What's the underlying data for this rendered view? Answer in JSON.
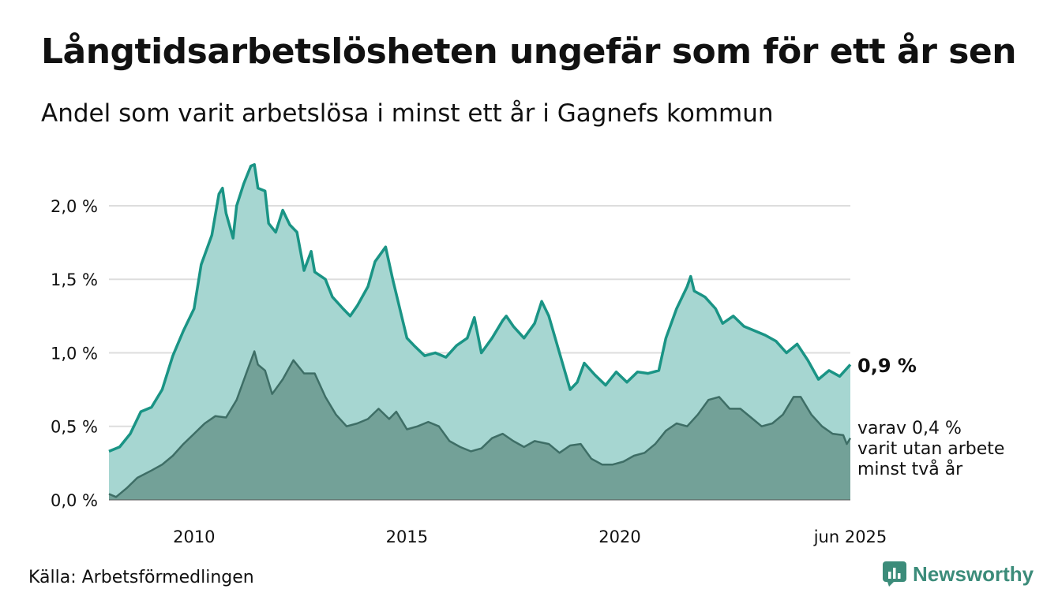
{
  "header": {
    "title": "Långtidsarbetslösheten ungefär som för ett år sen",
    "subtitle": "Andel som varit arbetslösa i minst ett år i Gagnefs kommun"
  },
  "footer": {
    "source": "Källa: Arbetsförmedlingen",
    "brand": "Newsworthy"
  },
  "labels": {
    "end_value": "0,9 %",
    "sub_line1": "varav 0,4 %",
    "sub_line2": "varit utan arbete",
    "sub_line3": "minst två år"
  },
  "colors": {
    "one_year_line": "#1a9485",
    "one_year_fill": "#a6d6d1",
    "two_year_line": "#3e6e66",
    "two_year_fill": "#73a198",
    "grid": "#dddddd",
    "brand": "#3c8c7a"
  },
  "chart_data": {
    "type": "area",
    "x_start": "2008-01",
    "x_end": "2025-06",
    "ylim": [
      0,
      2.3
    ],
    "grid": true,
    "y_ticks": [
      {
        "value": 0.0,
        "label": "0,0 %"
      },
      {
        "value": 0.5,
        "label": "0,5 %"
      },
      {
        "value": 1.0,
        "label": "1,0 %"
      },
      {
        "value": 1.5,
        "label": "1,5 %"
      },
      {
        "value": 2.0,
        "label": "2,0 %"
      }
    ],
    "x_ticks": [
      {
        "date": "2010-01",
        "label": "2010"
      },
      {
        "date": "2015-01",
        "label": "2015"
      },
      {
        "date": "2020-01",
        "label": "2020"
      },
      {
        "date": "2025-06",
        "label": "jun 2025"
      }
    ],
    "series": [
      {
        "key": "one_year",
        "points": [
          [
            "2008-01",
            0.33
          ],
          [
            "2008-04",
            0.36
          ],
          [
            "2008-07",
            0.45
          ],
          [
            "2008-10",
            0.6
          ],
          [
            "2009-01",
            0.63
          ],
          [
            "2009-04",
            0.75
          ],
          [
            "2009-07",
            0.98
          ],
          [
            "2009-10",
            1.15
          ],
          [
            "2010-01",
            1.3
          ],
          [
            "2010-03",
            1.6
          ],
          [
            "2010-06",
            1.8
          ],
          [
            "2010-08",
            2.08
          ],
          [
            "2010-09",
            2.12
          ],
          [
            "2010-10",
            1.95
          ],
          [
            "2010-12",
            1.78
          ],
          [
            "2011-01",
            2.0
          ],
          [
            "2011-03",
            2.15
          ],
          [
            "2011-05",
            2.27
          ],
          [
            "2011-06",
            2.28
          ],
          [
            "2011-07",
            2.12
          ],
          [
            "2011-09",
            2.1
          ],
          [
            "2011-10",
            1.88
          ],
          [
            "2011-12",
            1.82
          ],
          [
            "2012-02",
            1.97
          ],
          [
            "2012-04",
            1.87
          ],
          [
            "2012-06",
            1.82
          ],
          [
            "2012-08",
            1.56
          ],
          [
            "2012-10",
            1.69
          ],
          [
            "2012-11",
            1.55
          ],
          [
            "2013-02",
            1.5
          ],
          [
            "2013-04",
            1.38
          ],
          [
            "2013-07",
            1.3
          ],
          [
            "2013-09",
            1.25
          ],
          [
            "2013-11",
            1.32
          ],
          [
            "2014-02",
            1.45
          ],
          [
            "2014-04",
            1.62
          ],
          [
            "2014-07",
            1.72
          ],
          [
            "2014-09",
            1.5
          ],
          [
            "2014-11",
            1.3
          ],
          [
            "2015-01",
            1.1
          ],
          [
            "2015-03",
            1.05
          ],
          [
            "2015-06",
            0.98
          ],
          [
            "2015-09",
            1.0
          ],
          [
            "2015-12",
            0.97
          ],
          [
            "2016-03",
            1.05
          ],
          [
            "2016-06",
            1.1
          ],
          [
            "2016-08",
            1.24
          ],
          [
            "2016-10",
            1.0
          ],
          [
            "2017-01",
            1.1
          ],
          [
            "2017-04",
            1.22
          ],
          [
            "2017-05",
            1.25
          ],
          [
            "2017-07",
            1.18
          ],
          [
            "2017-10",
            1.1
          ],
          [
            "2018-01",
            1.2
          ],
          [
            "2018-03",
            1.35
          ],
          [
            "2018-05",
            1.25
          ],
          [
            "2018-08",
            1.0
          ],
          [
            "2018-11",
            0.75
          ],
          [
            "2019-01",
            0.8
          ],
          [
            "2019-03",
            0.93
          ],
          [
            "2019-06",
            0.85
          ],
          [
            "2019-09",
            0.78
          ],
          [
            "2019-12",
            0.87
          ],
          [
            "2020-03",
            0.8
          ],
          [
            "2020-06",
            0.87
          ],
          [
            "2020-09",
            0.86
          ],
          [
            "2020-12",
            0.88
          ],
          [
            "2021-02",
            1.1
          ],
          [
            "2021-05",
            1.3
          ],
          [
            "2021-08",
            1.45
          ],
          [
            "2021-09",
            1.52
          ],
          [
            "2021-10",
            1.42
          ],
          [
            "2022-01",
            1.38
          ],
          [
            "2022-04",
            1.3
          ],
          [
            "2022-06",
            1.2
          ],
          [
            "2022-09",
            1.25
          ],
          [
            "2022-12",
            1.18
          ],
          [
            "2023-03",
            1.15
          ],
          [
            "2023-06",
            1.12
          ],
          [
            "2023-09",
            1.08
          ],
          [
            "2023-12",
            1.0
          ],
          [
            "2024-03",
            1.06
          ],
          [
            "2024-06",
            0.95
          ],
          [
            "2024-09",
            0.82
          ],
          [
            "2024-12",
            0.88
          ],
          [
            "2025-03",
            0.84
          ],
          [
            "2025-06",
            0.92
          ]
        ]
      },
      {
        "key": "two_year",
        "points": [
          [
            "2008-01",
            0.04
          ],
          [
            "2008-03",
            0.02
          ],
          [
            "2008-06",
            0.08
          ],
          [
            "2008-09",
            0.15
          ],
          [
            "2009-01",
            0.2
          ],
          [
            "2009-04",
            0.24
          ],
          [
            "2009-07",
            0.3
          ],
          [
            "2009-10",
            0.38
          ],
          [
            "2010-01",
            0.45
          ],
          [
            "2010-04",
            0.52
          ],
          [
            "2010-07",
            0.57
          ],
          [
            "2010-10",
            0.56
          ],
          [
            "2011-01",
            0.68
          ],
          [
            "2011-04",
            0.88
          ],
          [
            "2011-06",
            1.01
          ],
          [
            "2011-07",
            0.92
          ],
          [
            "2011-09",
            0.88
          ],
          [
            "2011-11",
            0.72
          ],
          [
            "2012-02",
            0.82
          ],
          [
            "2012-05",
            0.95
          ],
          [
            "2012-08",
            0.86
          ],
          [
            "2012-11",
            0.86
          ],
          [
            "2013-02",
            0.7
          ],
          [
            "2013-05",
            0.58
          ],
          [
            "2013-08",
            0.5
          ],
          [
            "2013-11",
            0.52
          ],
          [
            "2014-02",
            0.55
          ],
          [
            "2014-05",
            0.62
          ],
          [
            "2014-08",
            0.55
          ],
          [
            "2014-10",
            0.6
          ],
          [
            "2015-01",
            0.48
          ],
          [
            "2015-04",
            0.5
          ],
          [
            "2015-07",
            0.53
          ],
          [
            "2015-10",
            0.5
          ],
          [
            "2016-01",
            0.4
          ],
          [
            "2016-04",
            0.36
          ],
          [
            "2016-07",
            0.33
          ],
          [
            "2016-10",
            0.35
          ],
          [
            "2017-01",
            0.42
          ],
          [
            "2017-04",
            0.45
          ],
          [
            "2017-07",
            0.4
          ],
          [
            "2017-10",
            0.36
          ],
          [
            "2018-01",
            0.4
          ],
          [
            "2018-05",
            0.38
          ],
          [
            "2018-08",
            0.32
          ],
          [
            "2018-11",
            0.37
          ],
          [
            "2019-02",
            0.38
          ],
          [
            "2019-05",
            0.28
          ],
          [
            "2019-08",
            0.24
          ],
          [
            "2019-11",
            0.24
          ],
          [
            "2020-02",
            0.26
          ],
          [
            "2020-05",
            0.3
          ],
          [
            "2020-08",
            0.32
          ],
          [
            "2020-11",
            0.38
          ],
          [
            "2021-02",
            0.47
          ],
          [
            "2021-05",
            0.52
          ],
          [
            "2021-08",
            0.5
          ],
          [
            "2021-11",
            0.58
          ],
          [
            "2022-02",
            0.68
          ],
          [
            "2022-05",
            0.7
          ],
          [
            "2022-08",
            0.62
          ],
          [
            "2022-11",
            0.62
          ],
          [
            "2023-02",
            0.56
          ],
          [
            "2023-05",
            0.5
          ],
          [
            "2023-08",
            0.52
          ],
          [
            "2023-11",
            0.58
          ],
          [
            "2024-02",
            0.7
          ],
          [
            "2024-04",
            0.7
          ],
          [
            "2024-07",
            0.58
          ],
          [
            "2024-10",
            0.5
          ],
          [
            "2025-01",
            0.45
          ],
          [
            "2025-04",
            0.44
          ],
          [
            "2025-05",
            0.38
          ],
          [
            "2025-06",
            0.42
          ]
        ]
      }
    ]
  }
}
